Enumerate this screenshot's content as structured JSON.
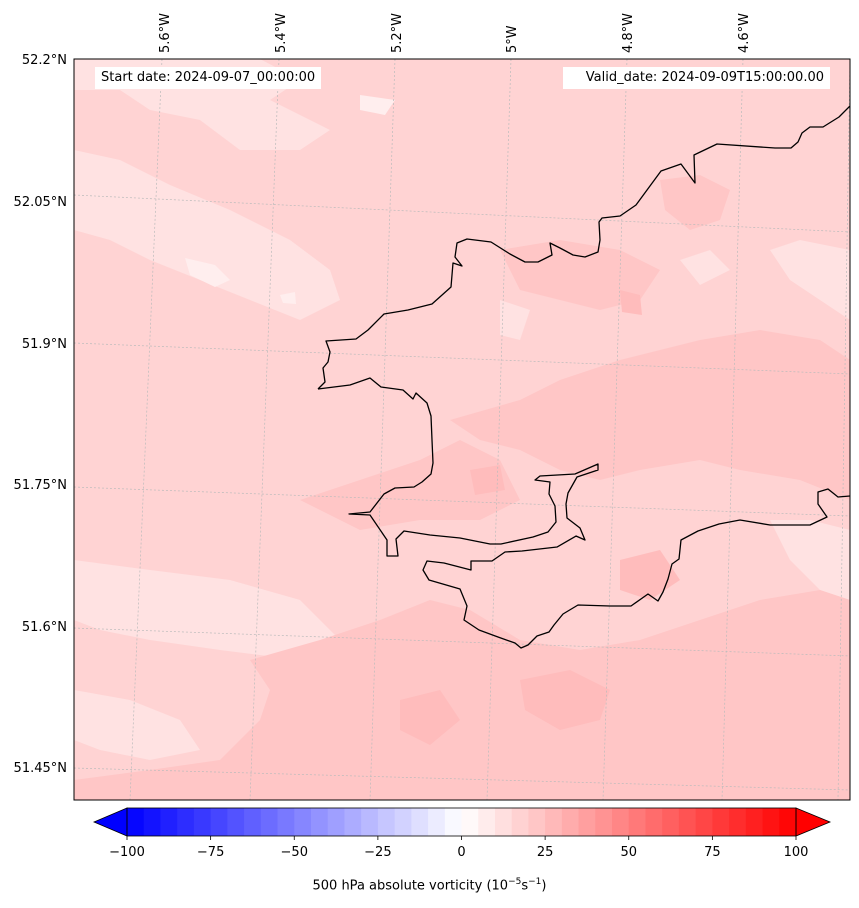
{
  "header": {
    "start_date": "Start date: 2024-09-07_00:00:00",
    "valid_date": "Valid_date: 2024-09-09T15:00:00.00"
  },
  "map": {
    "lon_labels": [
      "5.6°W",
      "5.4°W",
      "5.2°W",
      "5°W",
      "4.8°W",
      "4.6°W"
    ],
    "lat_labels": [
      "52.2°N",
      "52.05°N",
      "51.9°N",
      "51.75°N",
      "51.6°N",
      "51.45°N"
    ],
    "field_colors": {
      "base": "#ffd3d3",
      "light": "#ffe2e2",
      "lighter": "#ffeeee",
      "medium": "#ffc6c6",
      "dark": "#ffbcbc"
    },
    "coastline_color": "#000000",
    "grid_color": "#bbbbbb"
  },
  "colorbar": {
    "label": "500 hPa absolute vorticity (10",
    "label_exp1": "−5",
    "label_mid": "s",
    "label_exp2": "−1",
    "label_end": ")",
    "tick_labels": [
      "−100",
      "−75",
      "−50",
      "−25",
      "0",
      "25",
      "50",
      "75",
      "100"
    ],
    "min": -100,
    "max": 100,
    "step": 5,
    "extend": "both",
    "negative_color": "#0000ff",
    "positive_color": "#ff0000",
    "mid_color": "#ffffff"
  }
}
